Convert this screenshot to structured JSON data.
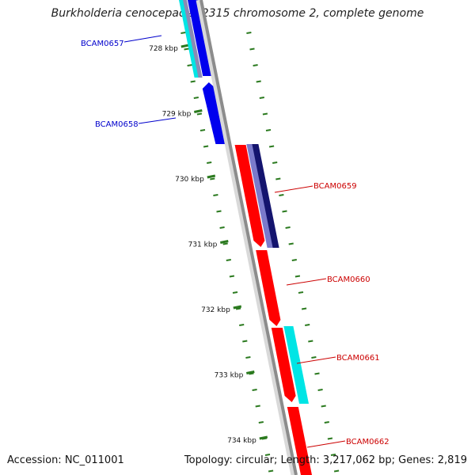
{
  "title": "Burkholderia cenocepacia J2315 chromosome 2, complete genome",
  "footer": {
    "accession": "Accession: NC_011001",
    "summary": "Topology: circular; Length: 3,217,062 bp; Genes: 2,819"
  },
  "colors": {
    "backbone": "#8c8c8c",
    "tick": "#2b7a1f",
    "forward_gene": "#ff0000",
    "reverse_gene": "#0000ee",
    "feature_cyan": "#00e5e5",
    "feature_navy": "#14146e",
    "label_forward": "#cc0000",
    "label_reverse": "#0000cc"
  },
  "scale": {
    "ticks": [
      {
        "kbp": 728,
        "label": "728 kbp"
      },
      {
        "kbp": 729,
        "label": "729 kbp"
      },
      {
        "kbp": 730,
        "label": "730 kbp"
      },
      {
        "kbp": 731,
        "label": "731 kbp"
      },
      {
        "kbp": 732,
        "label": "732 kbp"
      },
      {
        "kbp": 733,
        "label": "733 kbp"
      },
      {
        "kbp": 734,
        "label": "734 kbp"
      }
    ]
  },
  "genes": [
    {
      "name": "BCAM0657",
      "strand": "reverse"
    },
    {
      "name": "BCAM0658",
      "strand": "reverse"
    },
    {
      "name": "BCAM0659",
      "strand": "forward"
    },
    {
      "name": "BCAM0660",
      "strand": "forward"
    },
    {
      "name": "BCAM0661",
      "strand": "forward"
    },
    {
      "name": "BCAM0662",
      "strand": "forward"
    }
  ]
}
